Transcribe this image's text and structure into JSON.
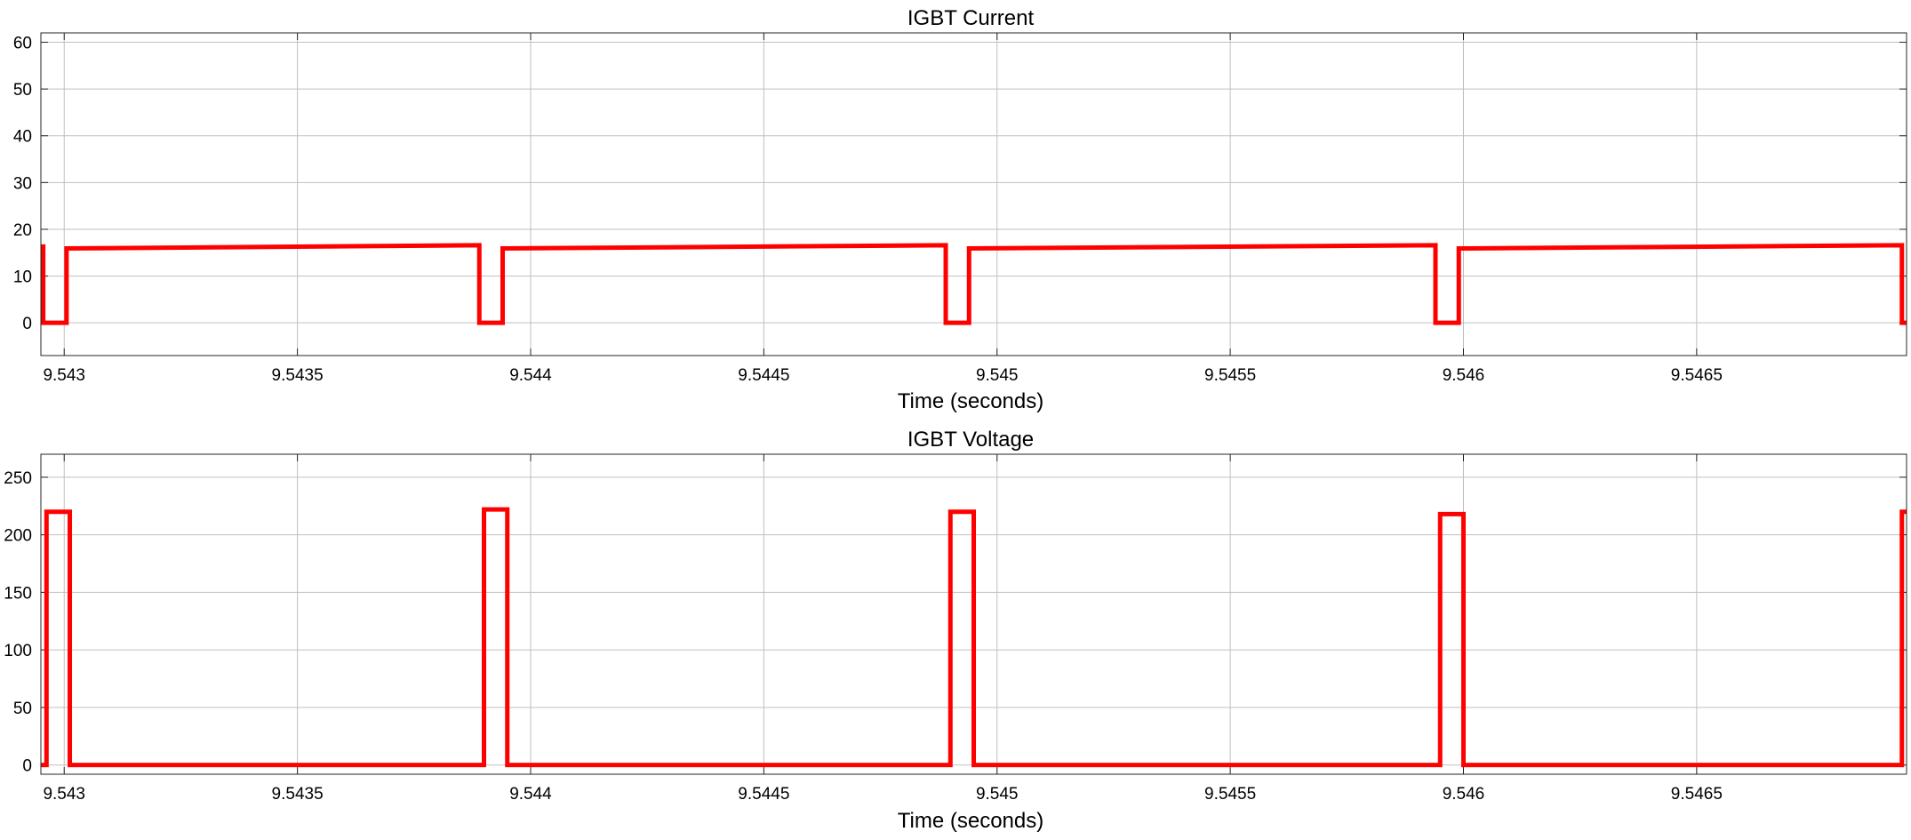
{
  "figure": {
    "background": "#ffffff"
  },
  "style": {
    "line_color": "#ff0000",
    "grid_color": "#bfbfbf",
    "axis_color": "#262626"
  },
  "chart_data": [
    {
      "type": "line",
      "title": "IGBT Current",
      "xlabel": "Time (seconds)",
      "ylabel": "",
      "xlim": [
        9.54295,
        9.54695
      ],
      "ylim": [
        -7,
        62
      ],
      "xticks": [
        9.543,
        9.5435,
        9.544,
        9.5445,
        9.545,
        9.5455,
        9.546,
        9.5465
      ],
      "xtick_labels": [
        "9.543",
        "9.5435",
        "9.544",
        "9.5445",
        "9.545",
        "9.5455",
        "9.546",
        "9.5465"
      ],
      "yticks": [
        0,
        10,
        20,
        30,
        40,
        50,
        60
      ],
      "ytick_labels": [
        "0",
        "10",
        "20",
        "30",
        "40",
        "50",
        "60"
      ],
      "grid": true,
      "series": [
        {
          "color": "#ff0000",
          "x": [
            9.54295,
            9.542955,
            9.542955,
            9.543005,
            9.543005,
            9.54389,
            9.54389,
            9.54394,
            9.54394,
            9.54489,
            9.54489,
            9.54494,
            9.54494,
            9.54594,
            9.54594,
            9.54599,
            9.54599,
            9.54694,
            9.54694,
            9.54695
          ],
          "y": [
            16.3,
            16.3,
            0,
            0,
            15.9,
            16.6,
            0,
            0,
            15.9,
            16.6,
            0,
            0,
            15.9,
            16.6,
            0,
            0,
            15.9,
            16.6,
            0,
            0
          ]
        }
      ]
    },
    {
      "type": "line",
      "title": "IGBT Voltage",
      "xlabel": "Time (seconds)",
      "ylabel": "",
      "xlim": [
        9.54295,
        9.54695
      ],
      "ylim": [
        -8,
        270
      ],
      "xticks": [
        9.543,
        9.5435,
        9.544,
        9.5445,
        9.545,
        9.5455,
        9.546,
        9.5465
      ],
      "xtick_labels": [
        "9.543",
        "9.5435",
        "9.544",
        "9.5445",
        "9.545",
        "9.5455",
        "9.546",
        "9.5465"
      ],
      "yticks": [
        0,
        50,
        100,
        150,
        200,
        250
      ],
      "ytick_labels": [
        "0",
        "50",
        "100",
        "150",
        "200",
        "250"
      ],
      "grid": true,
      "series": [
        {
          "color": "#ff0000",
          "x": [
            9.54295,
            9.542962,
            9.542962,
            9.543012,
            9.543012,
            9.5439,
            9.5439,
            9.54395,
            9.54395,
            9.5449,
            9.5449,
            9.54495,
            9.54495,
            9.54595,
            9.54595,
            9.546,
            9.546,
            9.54694,
            9.54694,
            9.54695
          ],
          "y": [
            0,
            0,
            220,
            220,
            0,
            0,
            222,
            222,
            0,
            0,
            220,
            220,
            0,
            0,
            218,
            218,
            0,
            0,
            220,
            220
          ]
        }
      ]
    }
  ]
}
